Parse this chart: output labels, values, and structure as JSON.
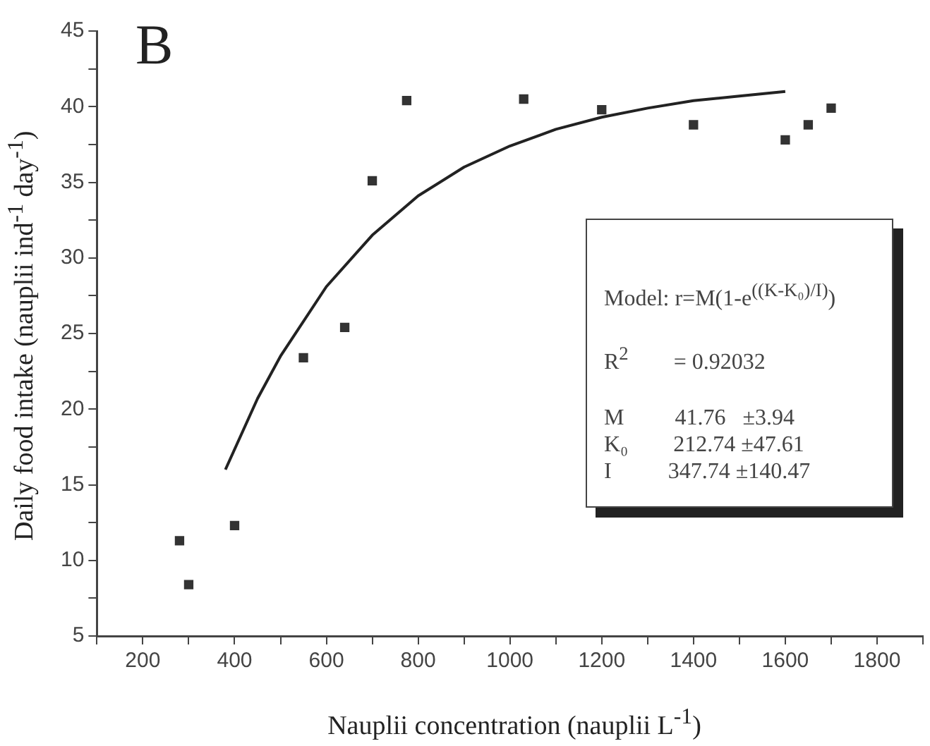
{
  "chart_data": {
    "type": "scatter",
    "xlabel": "Nauplii concentration (nauplii L$^{-1}$)",
    "ylabel": "Daily food intake (nauplii ind$^{-1}$ day$^{-1}$)",
    "annotations": [
      "B",
      "Model: r=M(1-e$^{((K-K₀)/I)}$)",
      "R$^{2}$        = 0.92032",
      "M         41.76   ±3.94",
      "K₀        212.74 ±47.61",
      "I          347.74 ±140.47"
    ],
    "series": [
      {
        "color": "#333333",
        "marker": "square",
        "x": [
          280,
          300,
          400,
          550,
          640,
          700,
          775,
          1030,
          1200,
          1400,
          1600,
          1650,
          1700
        ],
        "values": [
          11.3,
          8.4,
          12.3,
          23.4,
          25.4,
          35.1,
          40.4,
          40.5,
          39.8,
          38.8,
          37.8,
          38.8,
          39.9
        ]
      },
      {
        "type": "line",
        "color": "#222222",
        "marker": "none",
        "x": [
          380,
          450,
          500,
          600,
          700,
          800,
          900,
          1000,
          1100,
          1200,
          1300,
          1400,
          1500,
          1600
        ],
        "values": [
          16.0,
          20.7,
          23.5,
          28.1,
          31.5,
          34.1,
          36.0,
          37.4,
          38.5,
          39.3,
          39.9,
          40.4,
          40.7,
          41.0
        ]
      }
    ],
    "xlim": [
      100,
      1900
    ],
    "xticks": [
      {
        "value": 100,
        "label": null
      },
      200,
      {
        "value": 300,
        "label": null
      },
      400,
      {
        "value": 500,
        "label": null
      },
      600,
      {
        "value": 700,
        "label": null
      },
      800,
      {
        "value": 900,
        "label": null
      },
      1000,
      {
        "value": 1100,
        "label": null
      },
      1200,
      {
        "value": 1300,
        "label": null
      },
      1400,
      {
        "value": 1500,
        "label": null
      },
      1600,
      {
        "value": 1700,
        "label": null
      },
      1800,
      {
        "value": 1900,
        "label": null
      }
    ],
    "ylim": [
      5,
      45
    ],
    "yticks": [
      5,
      {
        "value": 7.5,
        "label": null
      },
      10,
      {
        "value": 12.5,
        "label": null
      },
      15,
      {
        "value": 17.5,
        "label": null
      },
      20,
      {
        "value": 22.5,
        "label": null
      },
      25,
      {
        "value": 27.5,
        "label": null
      },
      30,
      {
        "value": 32.5,
        "label": null
      },
      35,
      {
        "value": 37.5,
        "label": null
      },
      40,
      {
        "value": 42.5,
        "label": null
      },
      45
    ],
    "grid": false,
    "legend": false
  }
}
